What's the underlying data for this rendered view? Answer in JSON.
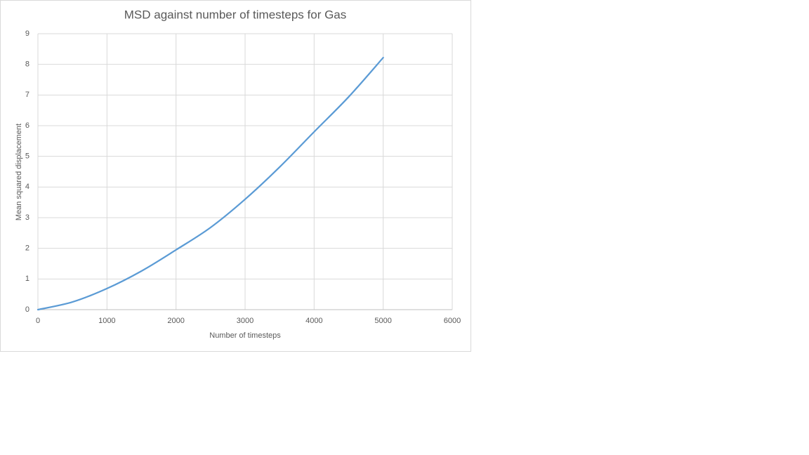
{
  "chart_data": {
    "type": "line",
    "title": "MSD against number of timesteps for Gas",
    "x_label": "Number  of timesteps",
    "y_label": "Mean squared displacement",
    "x": [
      0,
      500,
      1000,
      1500,
      2000,
      2500,
      3000,
      3500,
      4000,
      4500,
      5000
    ],
    "values": [
      0,
      0.25,
      0.69,
      1.26,
      1.95,
      2.68,
      3.6,
      4.65,
      5.8,
      6.94,
      8.22
    ],
    "color": "#5b9bd5",
    "xlim": [
      0,
      6000
    ],
    "xticks": [
      0,
      1000,
      2000,
      3000,
      4000,
      5000,
      6000
    ],
    "ylim": [
      0,
      9
    ],
    "yticks": [
      0,
      1,
      2,
      3,
      4,
      5,
      6,
      7,
      8,
      9
    ],
    "grid": true
  }
}
